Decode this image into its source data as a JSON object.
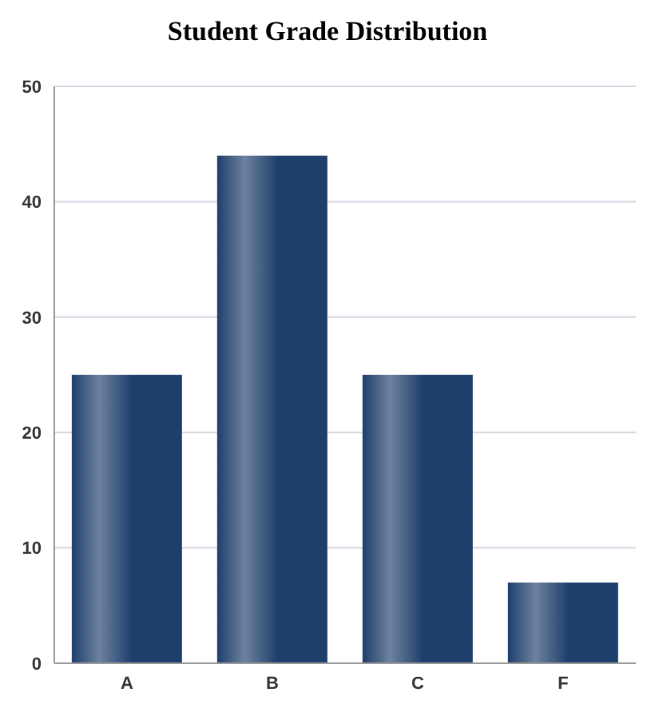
{
  "chart_data": {
    "type": "bar",
    "title": "Student Grade Distribution",
    "categories": [
      "A",
      "B",
      "C",
      "F"
    ],
    "values": [
      25,
      44,
      25,
      7
    ],
    "color": "#1e3f6b",
    "ylim": [
      0,
      50
    ],
    "yticks": [
      0,
      10,
      20,
      30,
      40,
      50
    ],
    "grid": "y"
  }
}
